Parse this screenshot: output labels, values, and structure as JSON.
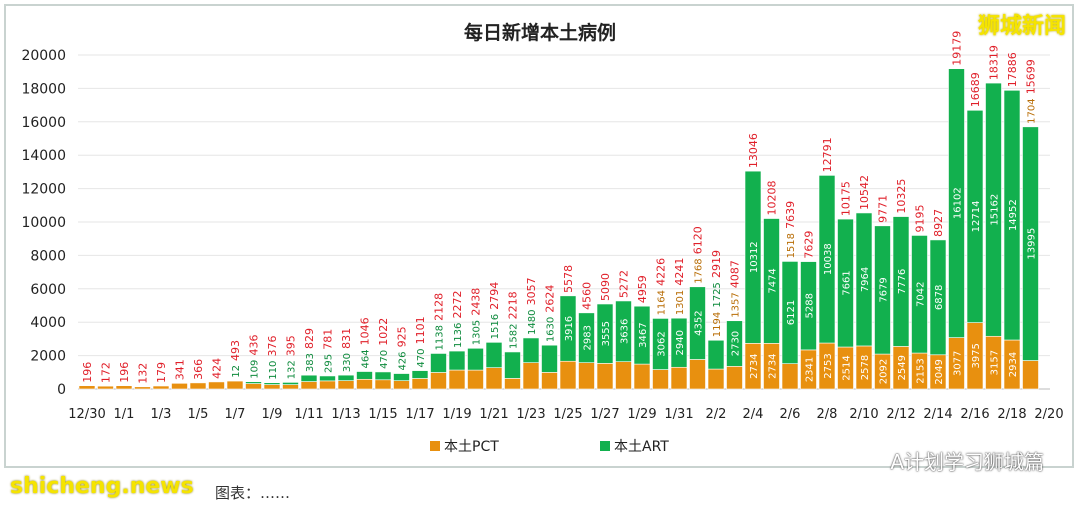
{
  "chart_data": {
    "type": "bar",
    "stacked": true,
    "title": "每日新增本土病例",
    "categories": [
      "12/30",
      "12/31",
      "1/1",
      "1/2",
      "1/3",
      "1/4",
      "1/5",
      "1/6",
      "1/7",
      "1/8",
      "1/9",
      "1/10",
      "1/11",
      "1/12",
      "1/13",
      "1/14",
      "1/15",
      "1/16",
      "1/17",
      "1/18",
      "1/19",
      "1/20",
      "1/21",
      "1/22",
      "1/23",
      "1/24",
      "1/25",
      "1/26",
      "1/27",
      "1/28",
      "1/29",
      "1/30",
      "1/31",
      "2/1",
      "2/2",
      "2/3",
      "2/4",
      "2/5",
      "2/6",
      "2/7",
      "2/8",
      "2/9",
      "2/10",
      "2/11",
      "2/12",
      "2/13",
      "2/14",
      "2/15",
      "2/16",
      "2/17",
      "2/18",
      "2/19"
    ],
    "x_tick_labels": [
      "12/30",
      "1/1",
      "1/3",
      "1/5",
      "1/7",
      "1/9",
      "1/11",
      "1/13",
      "1/15",
      "1/17",
      "1/19",
      "1/21",
      "1/23",
      "1/25",
      "1/27",
      "1/29",
      "1/31",
      "2/2",
      "2/4",
      "2/6",
      "2/8",
      "2/10",
      "2/12",
      "2/14",
      "2/16",
      "2/18",
      "2/20"
    ],
    "series": [
      {
        "name": "本土PCT",
        "color": "#E8900F",
        "values": [
          196,
          172,
          196,
          132,
          179,
          341,
          366,
          424,
          481,
          327,
          266,
          263,
          446,
          486,
          501,
          582,
          552,
          499,
          631,
          990,
          1136,
          1133,
          1278,
          636,
          1577,
          994,
          1662,
          1577,
          1535,
          1636,
          1492,
          1164,
          1301,
          1768,
          1194,
          1357,
          2734,
          2734,
          1518,
          2341,
          2753,
          2514,
          2578,
          2092,
          2549,
          2153,
          2049,
          3077,
          3975,
          3157,
          2934,
          1704
        ]
      },
      {
        "name": "本土ART",
        "color": "#12B04E",
        "values": [
          0,
          0,
          0,
          0,
          0,
          0,
          0,
          0,
          12,
          109,
          110,
          132,
          383,
          295,
          330,
          464,
          470,
          426,
          470,
          1138,
          1136,
          1305,
          1516,
          1582,
          1480,
          1630,
          3916,
          2983,
          3555,
          3636,
          3467,
          3062,
          2940,
          4352,
          1725,
          2730,
          10312,
          7474,
          6121,
          5288,
          10038,
          7661,
          7964,
          7679,
          7776,
          7042,
          6878,
          16102,
          12714,
          15162,
          14952,
          13995
        ]
      }
    ],
    "totals": [
      196,
      172,
      196,
      132,
      179,
      341,
      366,
      424,
      493,
      436,
      376,
      395,
      829,
      781,
      831,
      1046,
      1022,
      925,
      1101,
      2128,
      2272,
      2438,
      2794,
      2218,
      3057,
      2624,
      5578,
      4560,
      5090,
      5272,
      4959,
      4226,
      4241,
      6120,
      2919,
      4087,
      13046,
      10208,
      7639,
      7629,
      12791,
      10175,
      10542,
      9771,
      10325,
      9195,
      8927,
      19179,
      16689,
      18319,
      17886,
      15699
    ],
    "ylim": [
      0,
      20000
    ],
    "y_ticks": [
      0,
      2000,
      4000,
      6000,
      8000,
      10000,
      12000,
      14000,
      16000,
      18000,
      20000
    ],
    "grid": true,
    "legend_position": "bottom",
    "label_color": "#E0202A"
  },
  "watermarks": {
    "top_right": "狮城新闻",
    "bottom_left": "shicheng.news",
    "bottom_right": "A计划学习狮城篇",
    "caption": "图表：……"
  }
}
